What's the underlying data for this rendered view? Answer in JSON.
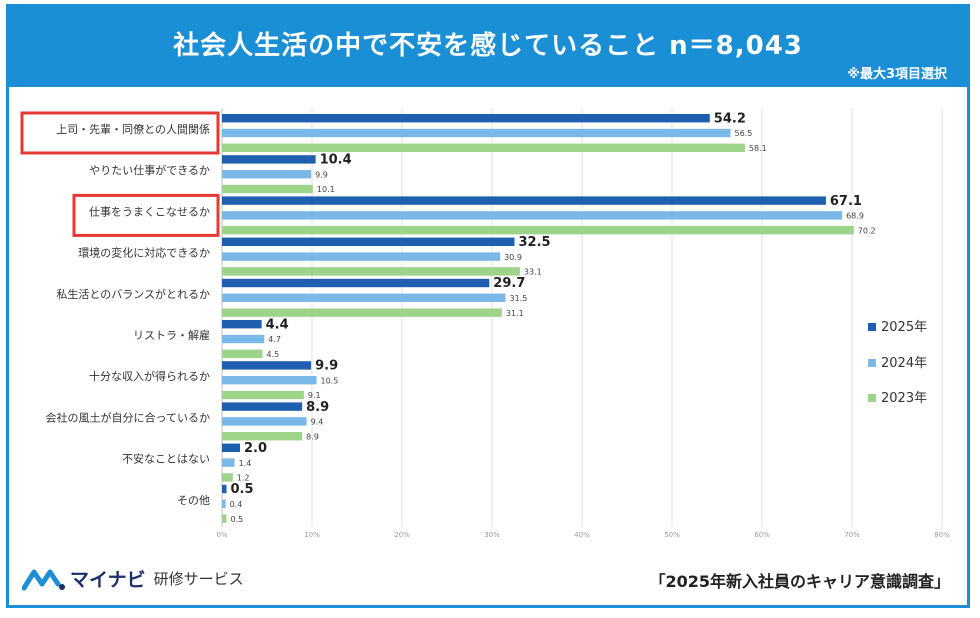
{
  "header": {
    "title": "社会人生活の中で不安を感じていること n＝8,043",
    "note": "※最大3項目選択"
  },
  "footer": {
    "brand_name": "マイナビ",
    "brand_sub": "研修サービス",
    "source": "「2025年新入社員のキャリア意識調査」"
  },
  "colors": {
    "2025": "#1f5fb0",
    "2024": "#7ab8e8",
    "2023": "#9ed38a",
    "highlight": "#e53935"
  },
  "chart_data": {
    "type": "bar",
    "orientation": "horizontal",
    "categories": [
      "上司・先輩・同僚との人間関係",
      "やりたい仕事ができるか",
      "仕事をうまくこなせるか",
      "環境の変化に対応できるか",
      "私生活とのバランスがとれるか",
      "リストラ・解雇",
      "十分な収入が得られるか",
      "会社の風土が自分に合っているか",
      "不安なことはない",
      "その他"
    ],
    "series": [
      {
        "name": "2025年",
        "values": [
          54.2,
          10.4,
          67.1,
          32.5,
          29.7,
          4.4,
          9.9,
          8.9,
          2.0,
          0.5
        ],
        "labels": [
          "54.2",
          "10.4",
          "67.1",
          "32.5",
          "29.7",
          "4.4",
          "9.9",
          "8.9",
          "2.0",
          "0.5"
        ]
      },
      {
        "name": "2024年",
        "values": [
          56.5,
          9.9,
          68.9,
          30.9,
          31.5,
          4.7,
          10.5,
          9.4,
          1.4,
          0.4
        ],
        "labels": [
          "56.5",
          "9.9",
          "68.9",
          "30.9",
          "31.5",
          "4.7",
          "10.5",
          "9.4",
          "1.4",
          "0.4"
        ]
      },
      {
        "name": "2023年",
        "values": [
          58.1,
          10.1,
          70.2,
          33.1,
          31.1,
          4.5,
          9.1,
          8.9,
          1.2,
          0.5
        ],
        "labels": [
          "58.1",
          "10.1",
          "70.2",
          "33.1",
          "31.1",
          "4.5",
          "9.1",
          "8.9",
          "1.2",
          "0.5"
        ]
      }
    ],
    "xticks": [
      "0%",
      "10%",
      "20%",
      "30%",
      "40%",
      "50%",
      "60%",
      "70%",
      "80%"
    ],
    "xlim": [
      0,
      80
    ],
    "grid": true,
    "legend": "right",
    "highlighted_categories": [
      0,
      2
    ]
  }
}
